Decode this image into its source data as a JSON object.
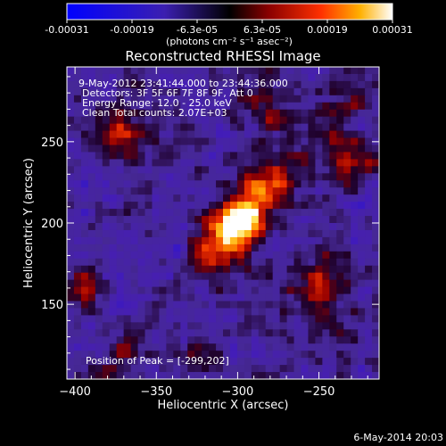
{
  "chart_data": {
    "type": "heatmap",
    "title": "Reconstructed RHESSI Image",
    "xlabel": "Heliocentric X (arcsec)",
    "ylabel": "Heliocentric Y (arcsec)",
    "xlim": [
      -405,
      -213
    ],
    "ylim": [
      104,
      296
    ],
    "x_ticks": [
      -400,
      -350,
      -300,
      -250
    ],
    "y_ticks": [
      150,
      200,
      250
    ],
    "colorbar": {
      "min": -0.00031,
      "max": 0.00031,
      "tick_labels": [
        "-0.00031",
        "-0.00019",
        "-6.3e-05",
        "6.3e-05",
        "0.00019",
        "0.00031"
      ],
      "units_label": "(photons cm⁻² s⁻¹ asec⁻²)"
    },
    "annotations": [
      "9-May-2012 23:41:44.000 to 23:44:36.000",
      "Detectors: 3F 5F 6F 7F 8F 9F, Att 0",
      "Energy Range: 12.0 - 25.0 keV",
      "Clean     Total counts: 2.07E+03"
    ],
    "peak_label": "Position of Peak = [-299,202]",
    "peak_position": [
      -299,
      202
    ],
    "total_counts": 2070,
    "energy_range_kev": [
      12.0,
      25.0
    ],
    "grid": false
  },
  "footer": {
    "timestamp": "6-May-2014 20:03"
  }
}
